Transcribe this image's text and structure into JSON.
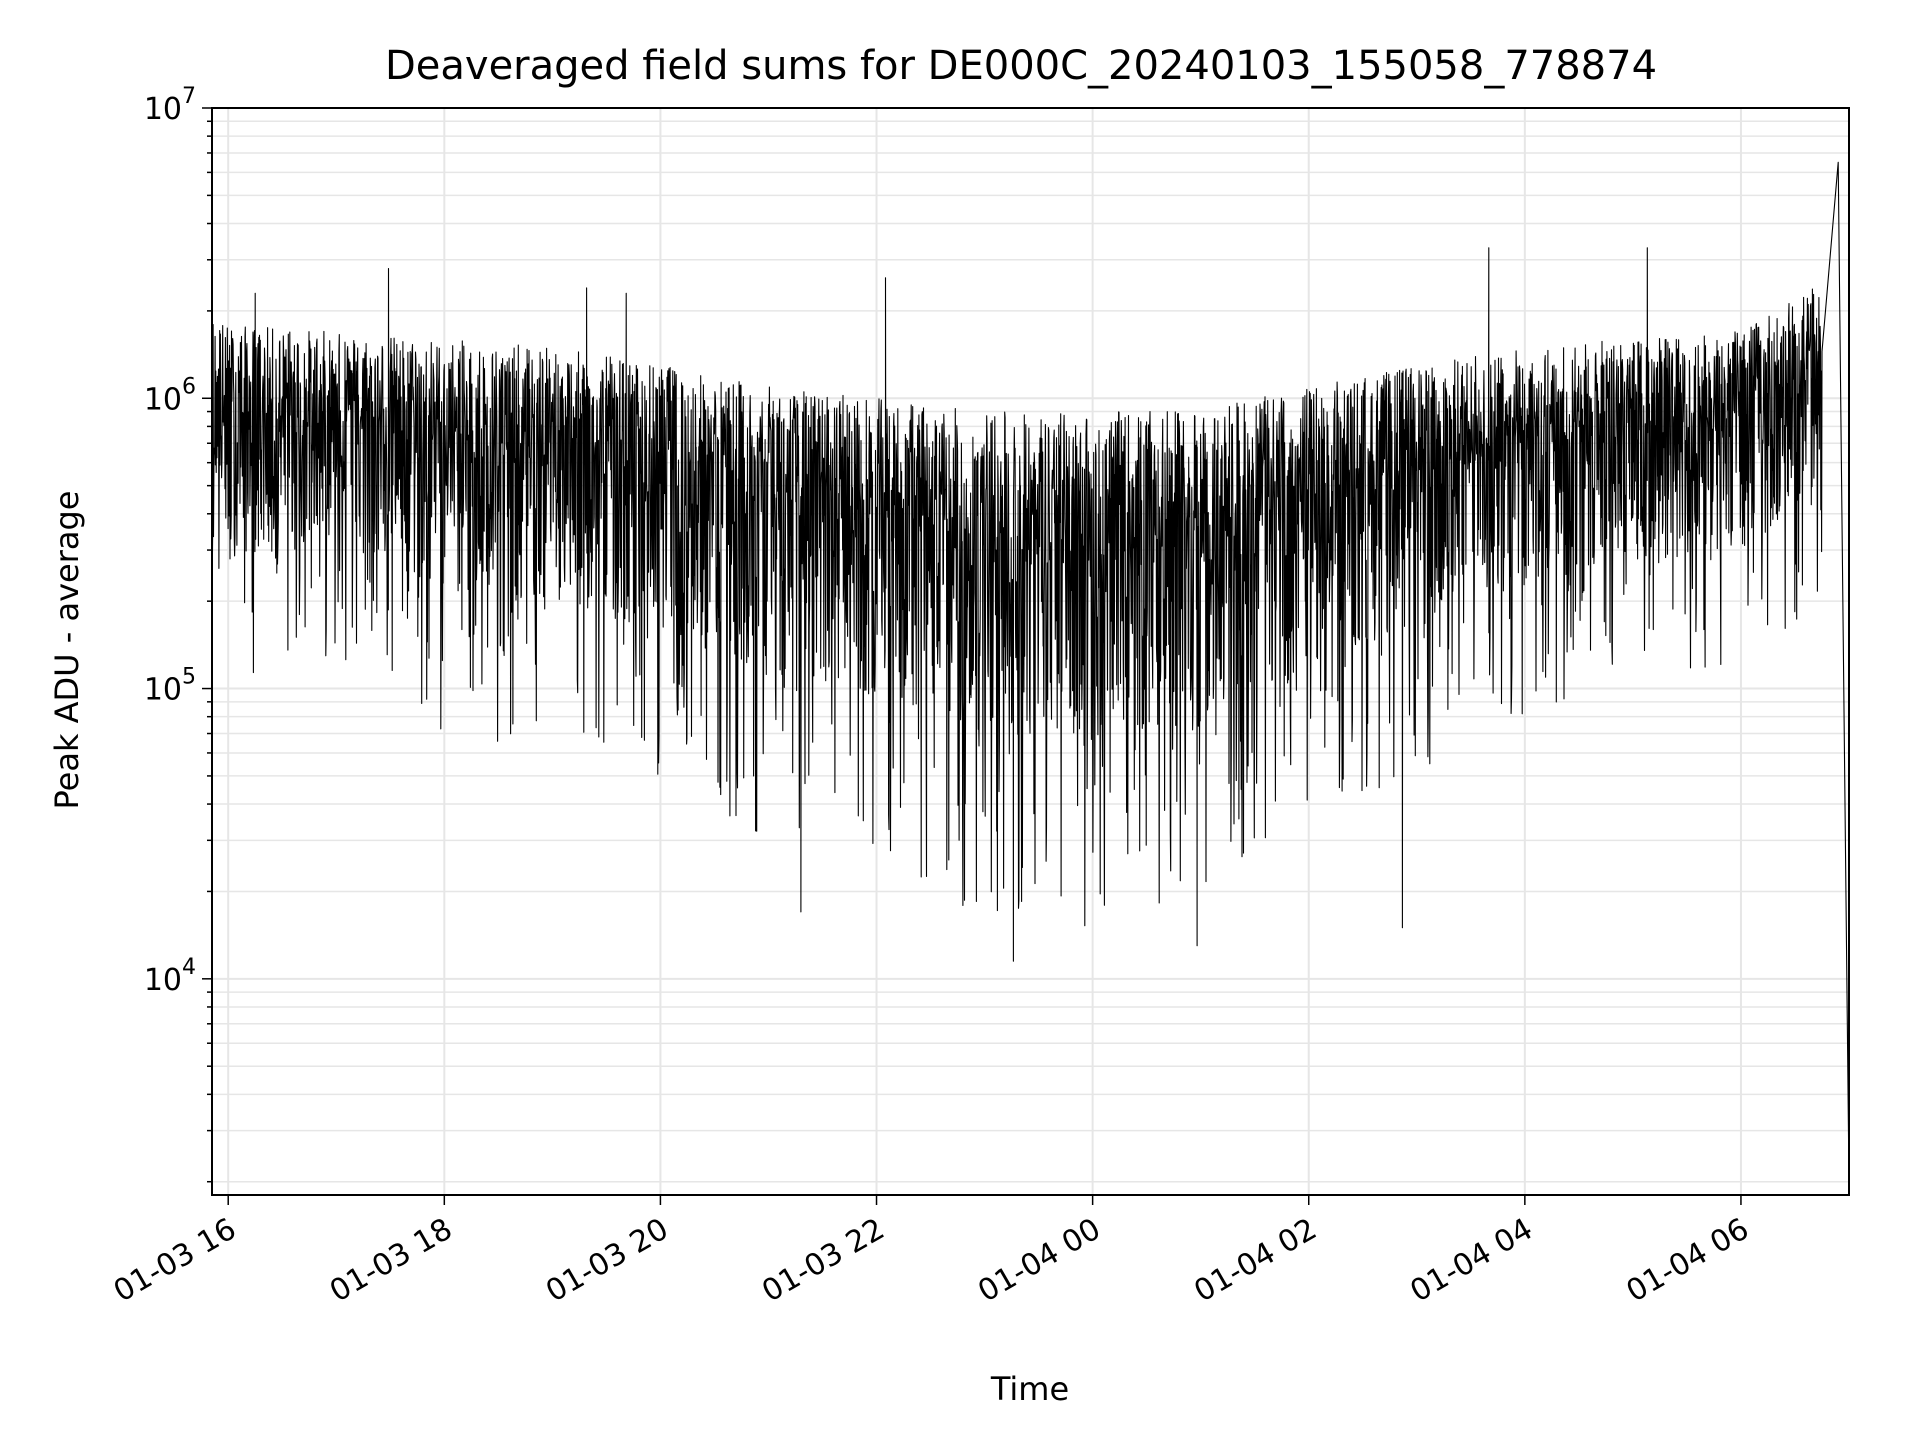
{
  "chart_data": {
    "type": "line",
    "title": "Deaveraged field sums for DE000C_20240103_155058_778874",
    "xlabel": "Time",
    "ylabel": "Peak ADU - average",
    "yscale": "log",
    "ylim": [
      1800,
      10000000
    ],
    "xlim": [
      "2024-01-03 15:51",
      "2024-01-04 07:00"
    ],
    "grid": true,
    "line_color": "#000000",
    "grid_color": "#e6e6e6",
    "x_ticks": [
      {
        "value": "2024-01-03 16:00",
        "label": "01-03 16"
      },
      {
        "value": "2024-01-03 18:00",
        "label": "01-03 18"
      },
      {
        "value": "2024-01-03 20:00",
        "label": "01-03 20"
      },
      {
        "value": "2024-01-03 22:00",
        "label": "01-03 22"
      },
      {
        "value": "2024-01-04 00:00",
        "label": "01-04 00"
      },
      {
        "value": "2024-01-04 02:00",
        "label": "01-04 02"
      },
      {
        "value": "2024-01-04 04:00",
        "label": "01-04 04"
      },
      {
        "value": "2024-01-04 06:00",
        "label": "01-04 06"
      }
    ],
    "y_ticks": [
      {
        "value": 10000,
        "label_base": "10",
        "label_exp": "4"
      },
      {
        "value": 100000,
        "label_base": "10",
        "label_exp": "5"
      },
      {
        "value": 1000000,
        "label_base": "10",
        "label_exp": "6"
      },
      {
        "value": 10000000,
        "label_base": "10",
        "label_exp": "7"
      }
    ],
    "series": [
      {
        "envelope": [
          {
            "time": "2024-01-03 15:51",
            "low": 90000,
            "high": 2000000
          },
          {
            "time": "2024-01-03 16:00",
            "low": 100000,
            "high": 1800000
          },
          {
            "time": "2024-01-03 17:00",
            "low": 130000,
            "high": 1700000
          },
          {
            "time": "2024-01-03 18:00",
            "low": 70000,
            "high": 1600000
          },
          {
            "time": "2024-01-03 19:00",
            "low": 60000,
            "high": 1500000
          },
          {
            "time": "2024-01-03 20:00",
            "low": 50000,
            "high": 1300000
          },
          {
            "time": "2024-01-03 21:00",
            "low": 30000,
            "high": 1100000
          },
          {
            "time": "2024-01-03 22:00",
            "low": 25000,
            "high": 1000000
          },
          {
            "time": "2024-01-03 23:00",
            "low": 15000,
            "high": 900000
          },
          {
            "time": "2024-01-04 00:00",
            "low": 15000,
            "high": 900000
          },
          {
            "time": "2024-01-04 01:00",
            "low": 18000,
            "high": 900000
          },
          {
            "time": "2024-01-04 02:00",
            "low": 35000,
            "high": 1100000
          },
          {
            "time": "2024-01-04 03:00",
            "low": 50000,
            "high": 1300000
          },
          {
            "time": "2024-01-04 04:00",
            "low": 80000,
            "high": 1500000
          },
          {
            "time": "2024-01-04 05:00",
            "low": 100000,
            "high": 1600000
          },
          {
            "time": "2024-01-04 06:00",
            "low": 110000,
            "high": 1700000
          },
          {
            "time": "2024-01-04 06:45",
            "low": 200000,
            "high": 2500000
          }
        ],
        "spikes": [
          {
            "time": "2024-01-03 17:29",
            "value": 2800000
          },
          {
            "time": "2024-01-03 16:15",
            "value": 2300000
          },
          {
            "time": "2024-01-03 19:19",
            "value": 2400000
          },
          {
            "time": "2024-01-03 19:41",
            "value": 2300000
          },
          {
            "time": "2024-01-03 22:05",
            "value": 2600000
          },
          {
            "time": "2024-01-04 03:40",
            "value": 3300000
          },
          {
            "time": "2024-01-04 05:08",
            "value": 3300000
          },
          {
            "time": "2024-01-04 06:54",
            "value": 6500000
          },
          {
            "time": "2024-01-03 23:16",
            "value": 11500
          },
          {
            "time": "2024-01-04 00:58",
            "value": 13000
          },
          {
            "time": "2024-01-04 02:52",
            "value": 15000
          },
          {
            "time": "2024-01-03 21:18",
            "value": 17000
          },
          {
            "time": "2024-01-04 07:00",
            "value": 2000
          }
        ]
      }
    ]
  }
}
